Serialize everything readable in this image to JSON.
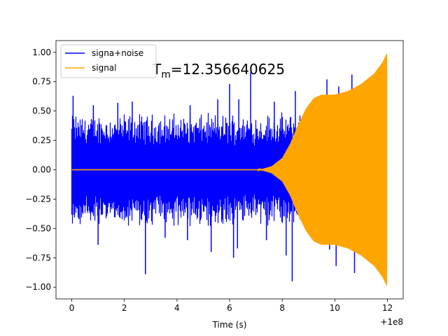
{
  "chart_data": {
    "type": "line",
    "title": "",
    "xlabel": "Time (s)",
    "ylabel": "",
    "x_offset_label": "+1e8",
    "annotation": {
      "symbol": "T",
      "subscript": "m",
      "text": "=12.356640625",
      "x": 3.05,
      "y": 0.82
    },
    "xlim": [
      -0.6,
      12.6
    ],
    "ylim": [
      -1.1,
      1.1
    ],
    "xticks": [
      0,
      2,
      4,
      6,
      8,
      10,
      12
    ],
    "xtick_labels": [
      "0",
      "2",
      "4",
      "6",
      "8",
      "10",
      "12"
    ],
    "yticks": [
      -1.0,
      -0.75,
      -0.5,
      -0.25,
      0.0,
      0.25,
      0.5,
      0.75,
      1.0
    ],
    "ytick_labels": [
      "−1.00",
      "−0.75",
      "−0.50",
      "−0.25",
      "0.00",
      "0.25",
      "0.50",
      "0.75",
      "1.00"
    ],
    "grid": false,
    "legend_position": "top-left",
    "series": [
      {
        "name": "signa+noise",
        "color": "#0000ff",
        "noise_band": 0.5,
        "peaks": [
          {
            "x": 0.05,
            "y": 0.63
          },
          {
            "x": 0.1,
            "y": -0.33
          },
          {
            "x": 0.27,
            "y": -0.42
          },
          {
            "x": 0.82,
            "y": 0.55
          },
          {
            "x": 1.0,
            "y": -0.64
          },
          {
            "x": 1.75,
            "y": 0.57
          },
          {
            "x": 2.3,
            "y": 0.58
          },
          {
            "x": 2.8,
            "y": -0.89
          },
          {
            "x": 3.55,
            "y": -0.58
          },
          {
            "x": 4.4,
            "y": -0.6
          },
          {
            "x": 4.5,
            "y": 0.55
          },
          {
            "x": 5.3,
            "y": -0.7
          },
          {
            "x": 5.55,
            "y": 0.6
          },
          {
            "x": 6.0,
            "y": 0.73
          },
          {
            "x": 6.15,
            "y": -0.75
          },
          {
            "x": 6.3,
            "y": -0.67
          },
          {
            "x": 6.35,
            "y": 0.6
          },
          {
            "x": 6.8,
            "y": 0.83
          },
          {
            "x": 7.4,
            "y": -0.6
          },
          {
            "x": 7.7,
            "y": 0.58
          },
          {
            "x": 8.15,
            "y": -0.73
          },
          {
            "x": 8.38,
            "y": -0.95
          },
          {
            "x": 8.5,
            "y": 0.67
          },
          {
            "x": 9.3,
            "y": -0.6
          },
          {
            "x": 9.7,
            "y": 0.77
          },
          {
            "x": 9.8,
            "y": -0.68
          },
          {
            "x": 10.05,
            "y": -0.82
          },
          {
            "x": 10.15,
            "y": 0.71
          },
          {
            "x": 10.65,
            "y": 0.81
          },
          {
            "x": 10.75,
            "y": -0.88
          },
          {
            "x": 11.5,
            "y": 0.76
          }
        ]
      },
      {
        "name": "signal",
        "color": "#ffa500",
        "envelope": {
          "x": [
            0.0,
            7.0,
            7.3,
            7.6,
            8.0,
            8.3,
            8.6,
            8.9,
            9.2,
            9.5,
            10.0,
            10.5,
            11.0,
            11.5,
            11.8,
            12.0
          ],
          "y": [
            0.0,
            0.0,
            0.01,
            0.03,
            0.1,
            0.22,
            0.38,
            0.52,
            0.61,
            0.64,
            0.64,
            0.67,
            0.73,
            0.82,
            0.91,
            1.0
          ]
        }
      }
    ]
  }
}
